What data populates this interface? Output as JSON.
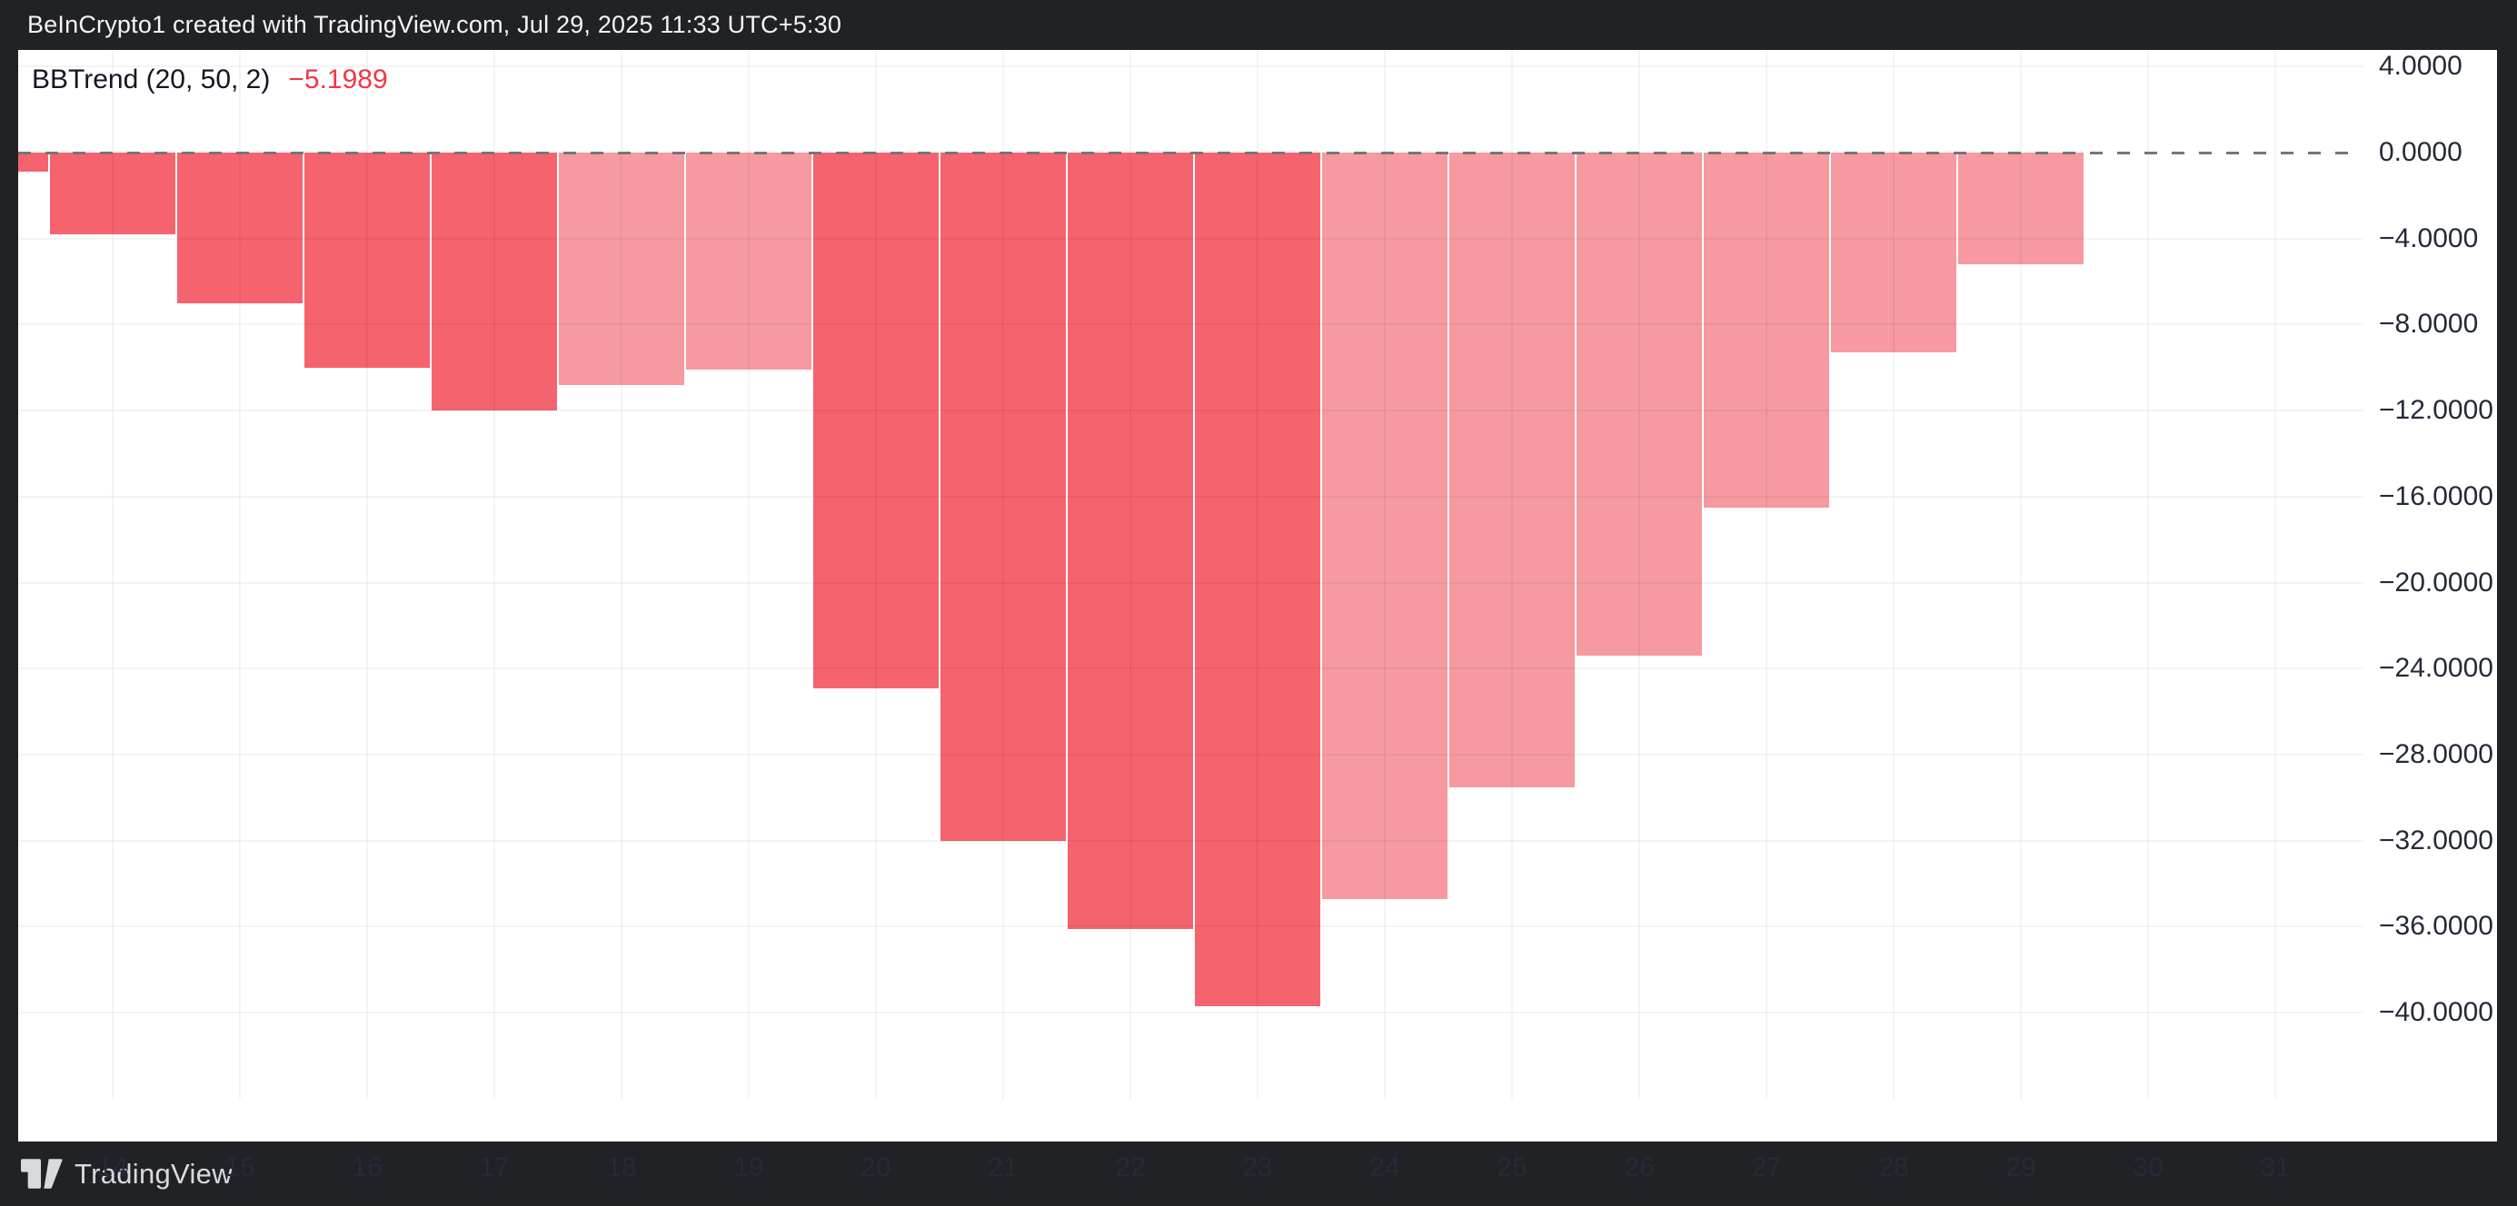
{
  "header": {
    "title": "BeInCrypto1 created with TradingView.com, Jul 29, 2025 11:33 UTC+5:30"
  },
  "legend": {
    "indicator": "BBTrend (20, 50, 2)",
    "value": "−5.1989"
  },
  "footer": {
    "brand": "TradingView",
    "logo_icon": "tradingview-logo-icon"
  },
  "colors": {
    "frame_bg": "#212226",
    "pane_bg": "#ffffff",
    "bar_dark": "#f5636e",
    "bar_light": "#f699a0",
    "value_red": "#f23645",
    "axis_text": "#242a38",
    "header_text": "#f4f5f6",
    "footer_text": "#d9dadc",
    "zero_line": "#757677"
  },
  "chart_data": {
    "type": "bar",
    "title": "BBTrend (20, 50, 2)",
    "legend_value": -5.1989,
    "xlabel": "",
    "ylabel": "",
    "ylim": [
      -46,
      4.8
    ],
    "grid": true,
    "zero_line_dashed": true,
    "y_ticks": [
      {
        "value": 4,
        "label": "4.0000"
      },
      {
        "value": 0,
        "label": "0.0000"
      },
      {
        "value": -4,
        "label": "−4.0000"
      },
      {
        "value": -8,
        "label": "−8.0000"
      },
      {
        "value": -12,
        "label": "−12.0000"
      },
      {
        "value": -16,
        "label": "−16.0000"
      },
      {
        "value": -20,
        "label": "−20.0000"
      },
      {
        "value": -24,
        "label": "−24.0000"
      },
      {
        "value": -28,
        "label": "−28.0000"
      },
      {
        "value": -32,
        "label": "−32.0000"
      },
      {
        "value": -36,
        "label": "−36.0000"
      },
      {
        "value": -40,
        "label": "−40.0000"
      }
    ],
    "x_ticks": [
      "14",
      "15",
      "16",
      "17",
      "18",
      "19",
      "20",
      "21",
      "22",
      "23",
      "24",
      "25",
      "26",
      "27",
      "28",
      "29",
      "30",
      "31"
    ],
    "bars": [
      {
        "day": 13,
        "value": -0.9,
        "shade": "dark",
        "clipped_left": true
      },
      {
        "day": 14,
        "value": -3.8,
        "shade": "dark"
      },
      {
        "day": 15,
        "value": -7.0,
        "shade": "dark"
      },
      {
        "day": 16,
        "value": -10.0,
        "shade": "dark"
      },
      {
        "day": 17,
        "value": -12.0,
        "shade": "dark"
      },
      {
        "day": 18,
        "value": -10.8,
        "shade": "light"
      },
      {
        "day": 19,
        "value": -10.1,
        "shade": "light"
      },
      {
        "day": 20,
        "value": -24.9,
        "shade": "dark"
      },
      {
        "day": 21,
        "value": -32.0,
        "shade": "dark"
      },
      {
        "day": 22,
        "value": -36.1,
        "shade": "dark"
      },
      {
        "day": 23,
        "value": -39.7,
        "shade": "dark"
      },
      {
        "day": 24,
        "value": -34.7,
        "shade": "light"
      },
      {
        "day": 25,
        "value": -29.5,
        "shade": "light"
      },
      {
        "day": 26,
        "value": -23.4,
        "shade": "light"
      },
      {
        "day": 27,
        "value": -16.5,
        "shade": "light"
      },
      {
        "day": 28,
        "value": -9.3,
        "shade": "light"
      },
      {
        "day": 29,
        "value": -5.2,
        "shade": "light"
      }
    ]
  }
}
